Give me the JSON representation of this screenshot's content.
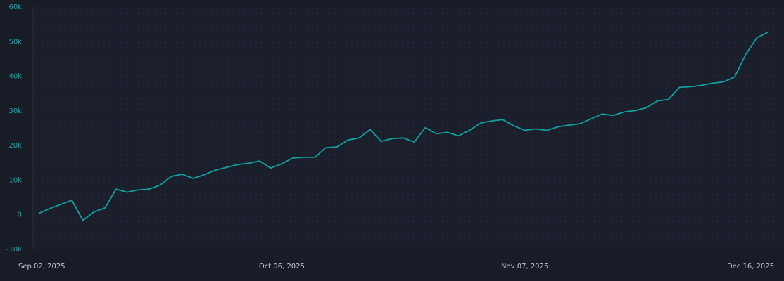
{
  "chart_data": {
    "type": "line",
    "categories": [
      "Sep 02, 2025",
      null,
      null,
      null,
      null,
      null,
      null,
      null,
      null,
      null,
      null,
      null,
      null,
      null,
      null,
      null,
      null,
      null,
      null,
      null,
      null,
      null,
      "Oct 06, 2025",
      null,
      null,
      null,
      null,
      null,
      null,
      null,
      null,
      null,
      null,
      null,
      null,
      null,
      null,
      null,
      null,
      null,
      null,
      null,
      null,
      null,
      "Nov 07, 2025",
      null,
      null,
      null,
      null,
      null,
      null,
      null,
      null,
      null,
      null,
      null,
      null,
      null,
      null,
      null,
      null,
      null,
      null,
      null,
      null,
      null,
      "Dec 16, 2025"
    ],
    "series": [
      {
        "color": "#12a0a0",
        "values": [
          400,
          1800,
          3000,
          4200,
          -1600,
          800,
          2000,
          7400,
          6500,
          7200,
          7400,
          8600,
          11100,
          11700,
          10500,
          11600,
          12900,
          13700,
          14500,
          14900,
          15500,
          13500,
          14700,
          16400,
          16600,
          16600,
          19400,
          19600,
          21600,
          22200,
          24600,
          21200,
          22000,
          22200,
          21000,
          25200,
          23400,
          23800,
          22800,
          24400,
          26500,
          27100,
          27500,
          25700,
          24400,
          24800,
          24400,
          25400,
          25900,
          26300,
          27700,
          29100,
          28700,
          29700,
          30100,
          30900,
          32900,
          33300,
          36800,
          37000,
          37400,
          38000,
          38400,
          39800,
          46300,
          51100,
          52700
        ]
      }
    ],
    "ylim": [
      -10000,
      60000
    ],
    "yticks": [
      {
        "value": -10000,
        "label": "-10k"
      },
      0,
      {
        "value": 10000,
        "label": "10k"
      },
      {
        "value": 20000,
        "label": "20k"
      },
      {
        "value": 30000,
        "label": "30k"
      },
      {
        "value": 40000,
        "label": "40k"
      },
      {
        "value": 50000,
        "label": "50k"
      },
      {
        "value": 60000,
        "label": "60k"
      }
    ]
  }
}
